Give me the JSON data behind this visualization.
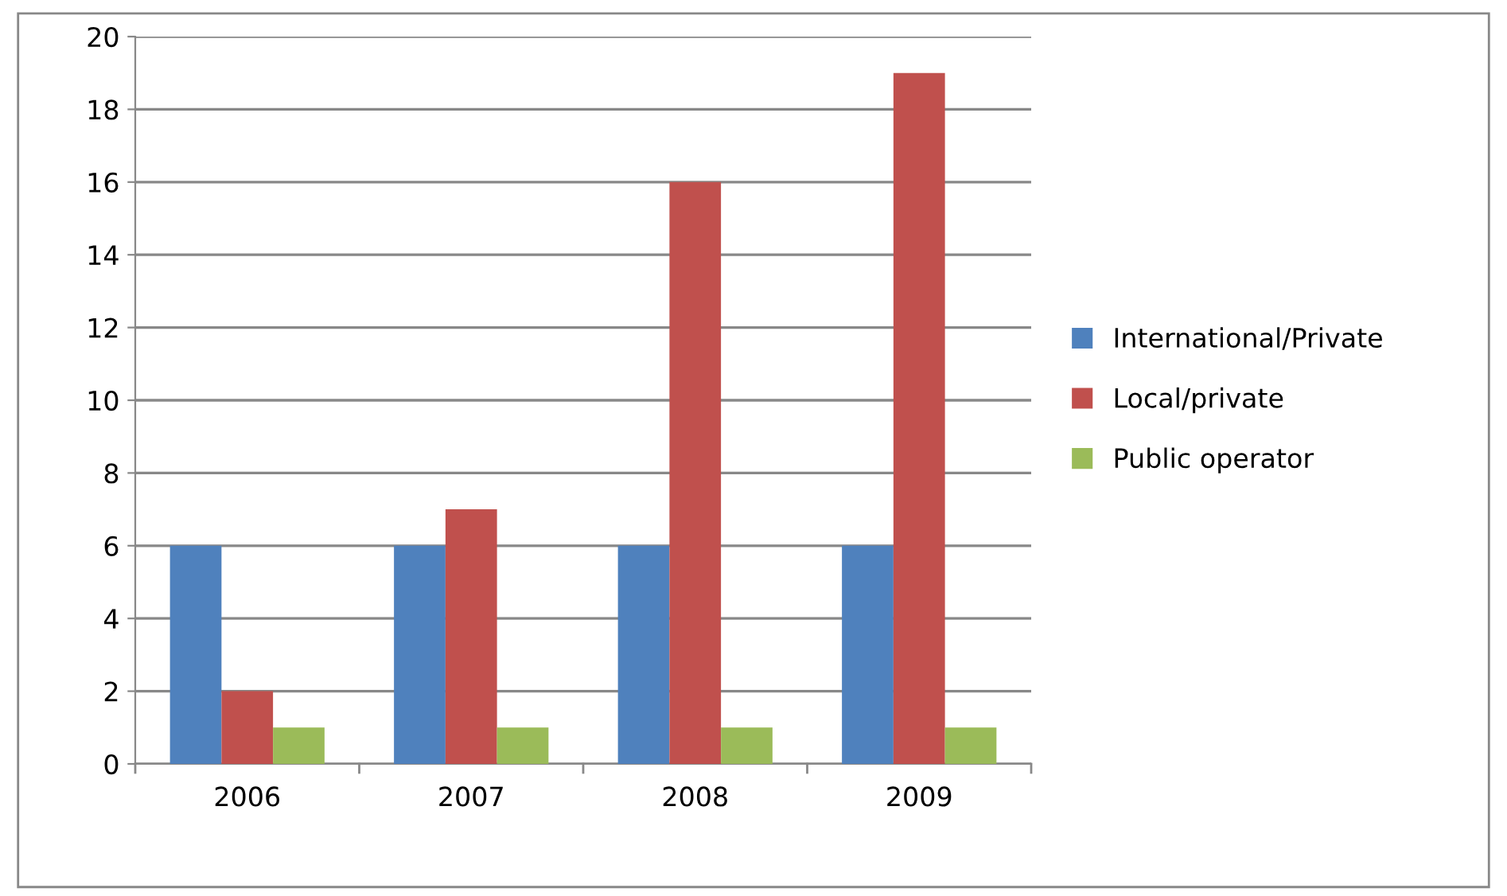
{
  "chart_data": {
    "type": "bar",
    "categories": [
      "2006",
      "2007",
      "2008",
      "2009"
    ],
    "series": [
      {
        "name": "International/Private",
        "color": "#4f81bd",
        "values": [
          6,
          6,
          6,
          6
        ]
      },
      {
        "name": "Local/private",
        "color": "#c0504d",
        "values": [
          2,
          7,
          16,
          19
        ]
      },
      {
        "name": "Public operator",
        "color": "#9bbb59",
        "values": [
          1,
          1,
          1,
          1
        ]
      }
    ],
    "ylim": [
      0,
      20
    ],
    "yticks": [
      0,
      2,
      4,
      6,
      8,
      10,
      12,
      14,
      16,
      18,
      20
    ],
    "grid": "y",
    "legend": "right"
  }
}
